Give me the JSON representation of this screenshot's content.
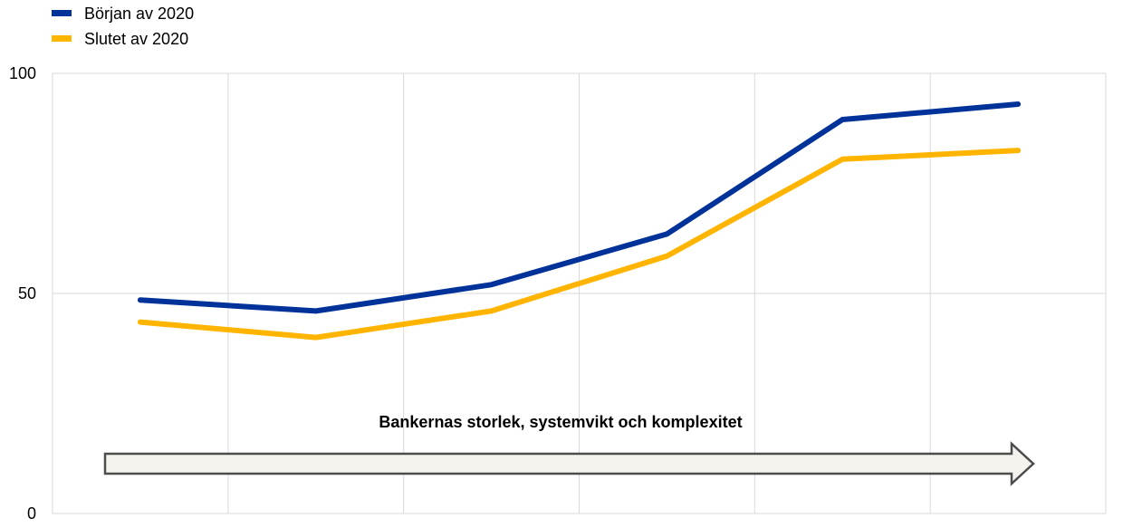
{
  "chart_data": {
    "type": "line",
    "title": "",
    "xlabel": "",
    "ylabel": "",
    "x": [
      1,
      2,
      3,
      4,
      5,
      6
    ],
    "xlim": [
      0.5,
      6.5
    ],
    "ylim": [
      0,
      100
    ],
    "yticks": [
      0,
      50,
      100
    ],
    "vertical_grid_x": [
      1.5,
      2.5,
      3.5,
      4.5,
      5.5
    ],
    "grid": true,
    "legend_position": "top-left",
    "series": [
      {
        "name": "Början av 2020",
        "color": "#003299",
        "values": [
          48.5,
          46,
          52,
          63.5,
          89.5,
          93
        ]
      },
      {
        "name": "Slutet av 2020",
        "color": "#FFB400",
        "values": [
          43.5,
          40,
          46,
          58.5,
          80.5,
          82.5
        ]
      }
    ],
    "annotation": {
      "text": "Bankernas storlek, systemvikt och komplexitet",
      "arrow_direction": "right"
    }
  }
}
